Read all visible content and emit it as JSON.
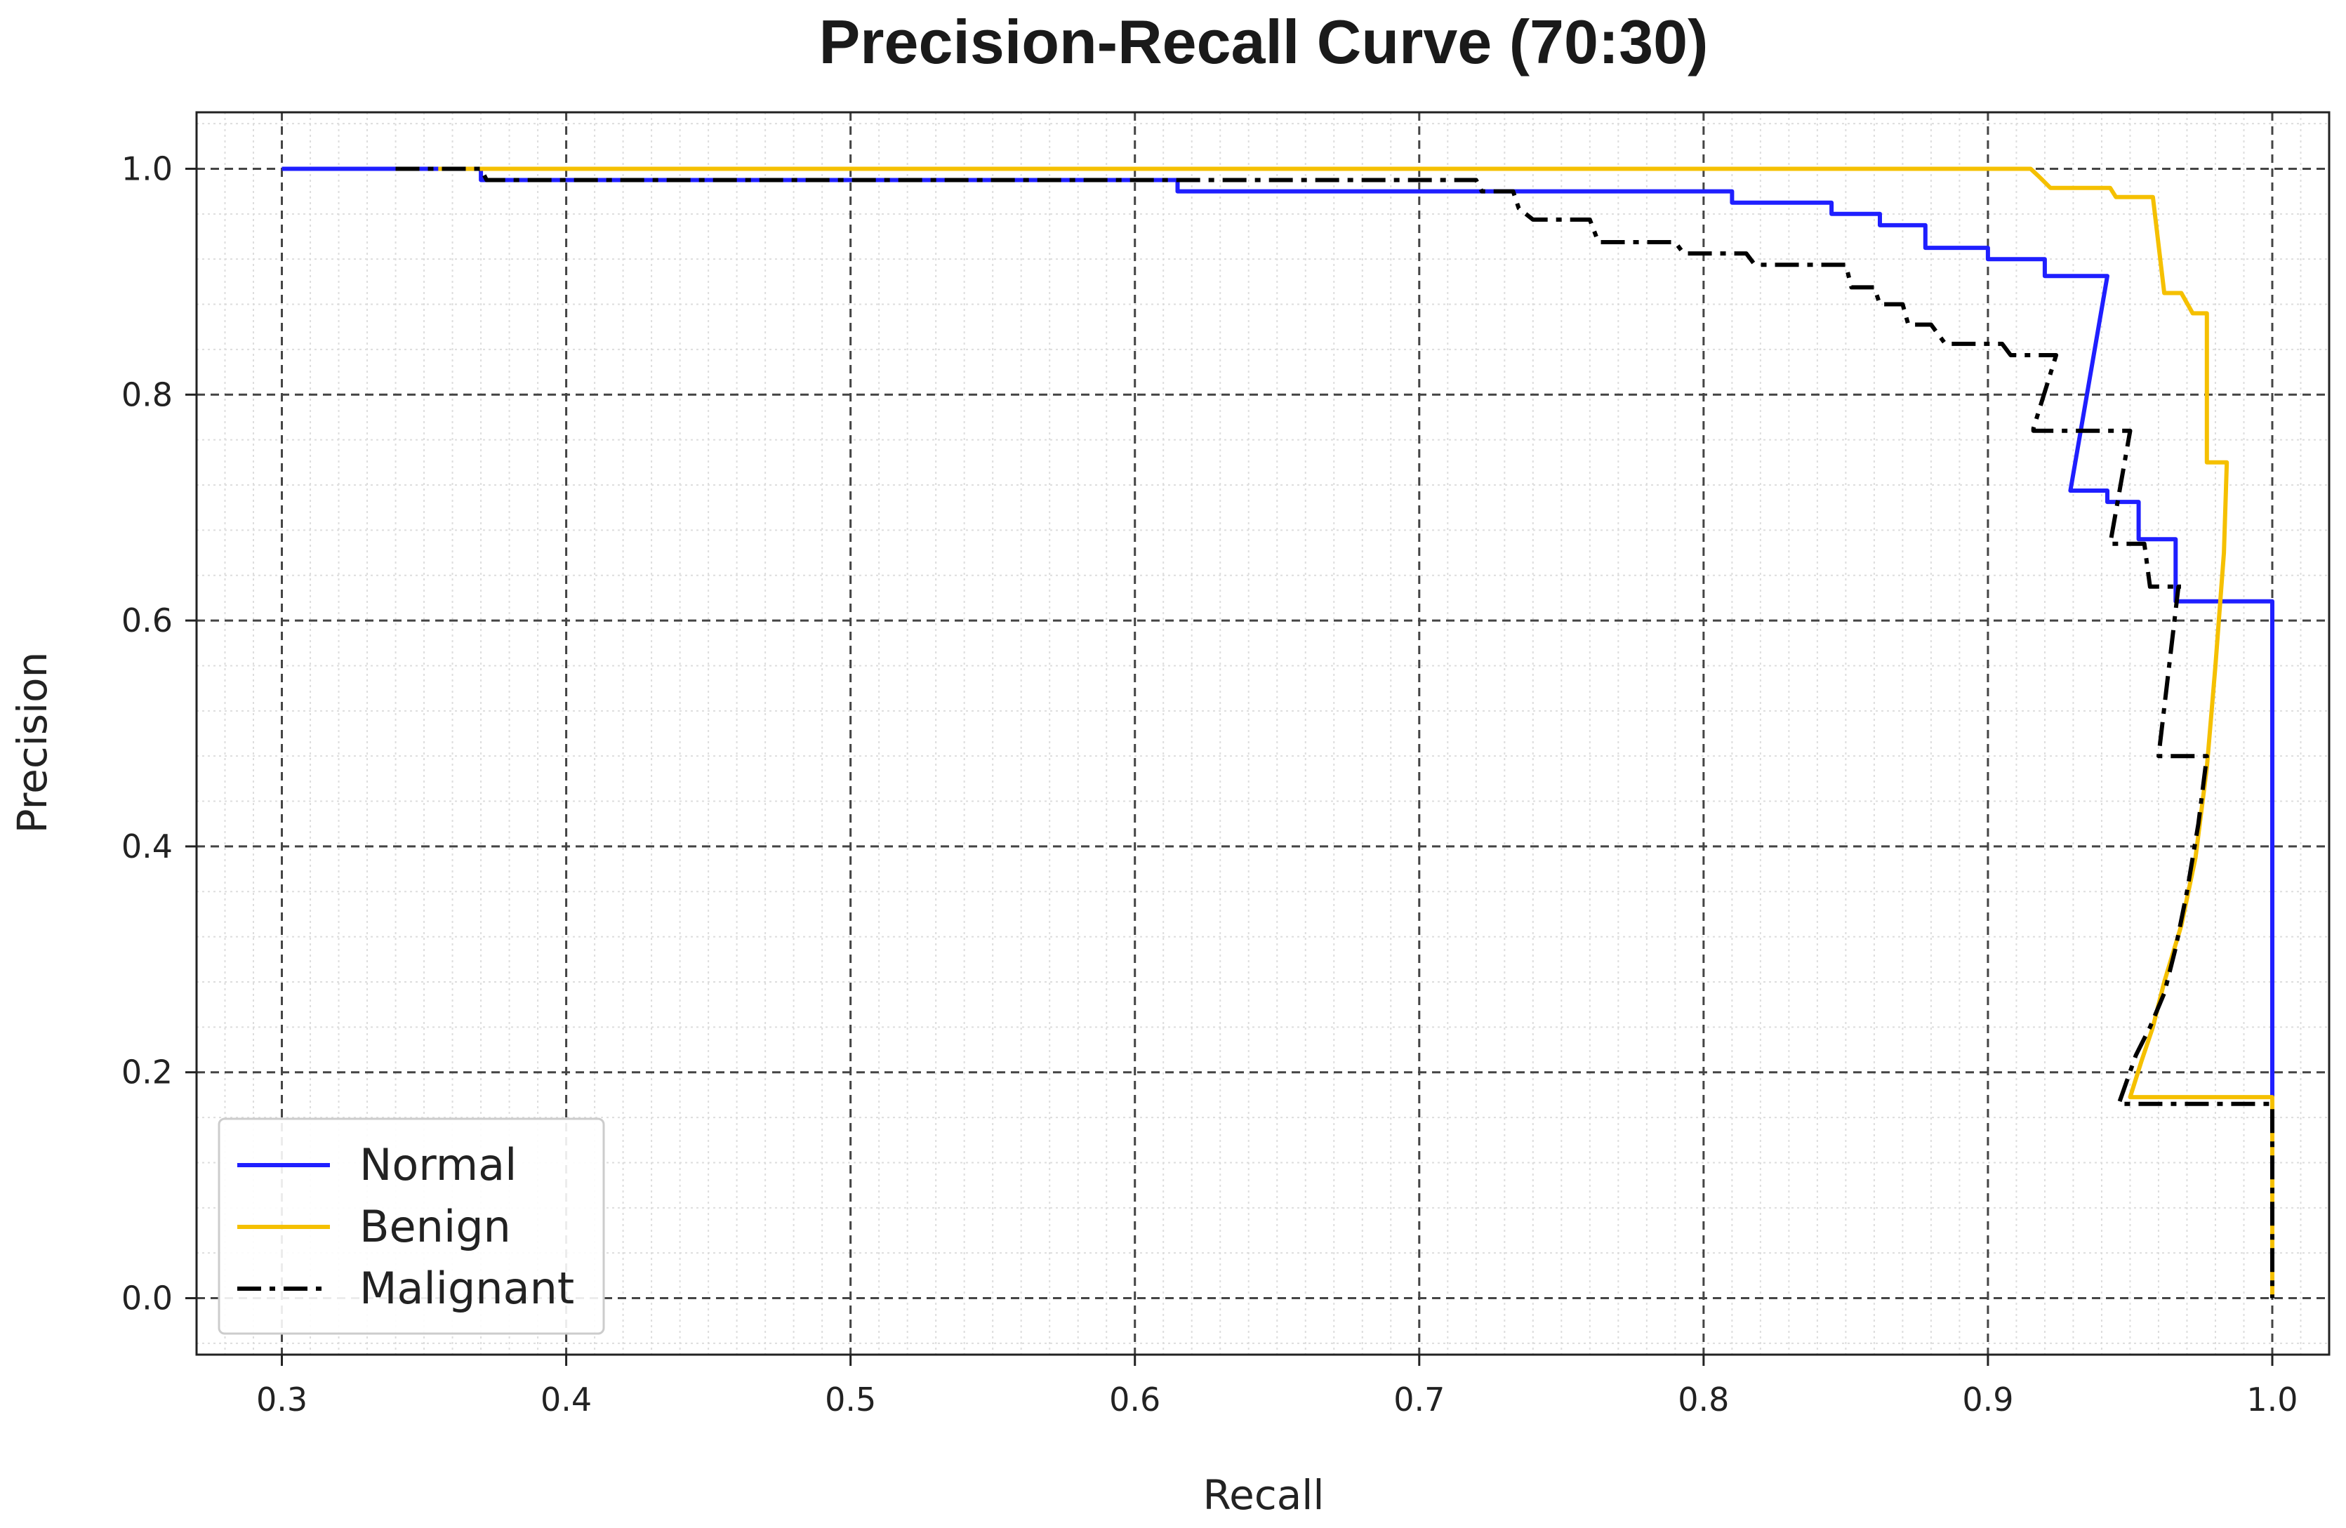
{
  "chart_data": {
    "type": "line",
    "title": "Precision-Recall Curve (70:30)",
    "xlabel": "Recall",
    "ylabel": "Precision",
    "xlim": [
      0.27,
      1.02
    ],
    "ylim": [
      -0.05,
      1.05
    ],
    "xticks": [
      0.3,
      0.4,
      0.5,
      0.6,
      0.7,
      0.8,
      0.9,
      1.0
    ],
    "xtick_labels": [
      "0.3",
      "0.4",
      "0.5",
      "0.6",
      "0.7",
      "0.8",
      "0.9",
      "1.0"
    ],
    "yticks": [
      0.0,
      0.2,
      0.4,
      0.6,
      0.8,
      1.0
    ],
    "ytick_labels": [
      "0.0",
      "0.2",
      "0.4",
      "0.6",
      "0.8",
      "1.0"
    ],
    "grid": "major dashed, minor dotted",
    "legend_position": "bottom-left",
    "series": [
      {
        "name": "Normal",
        "color": "#1f1fff",
        "style": "solid",
        "recall": [
          0.3,
          0.37,
          0.37,
          0.615,
          0.615,
          0.81,
          0.81,
          0.845,
          0.845,
          0.862,
          0.862,
          0.878,
          0.878,
          0.9,
          0.9,
          0.92,
          0.92,
          0.942,
          0.942,
          0.929,
          0.929,
          0.942,
          0.942,
          0.953,
          0.953,
          0.966,
          0.966,
          1.0,
          1.0,
          1.0
        ],
        "precision": [
          1.0,
          1.0,
          0.99,
          0.99,
          0.98,
          0.98,
          0.97,
          0.97,
          0.96,
          0.96,
          0.95,
          0.95,
          0.93,
          0.93,
          0.92,
          0.92,
          0.905,
          0.905,
          0.905,
          0.715,
          0.715,
          0.715,
          0.705,
          0.705,
          0.672,
          0.672,
          0.617,
          0.617,
          0.18,
          0.0
        ]
      },
      {
        "name": "Benign",
        "color": "#f5c000",
        "style": "solid",
        "recall": [
          0.355,
          0.915,
          0.918,
          0.922,
          0.943,
          0.945,
          0.958,
          0.962,
          0.968,
          0.972,
          0.977,
          0.977,
          0.984,
          0.983,
          0.98,
          0.977,
          0.973,
          0.968,
          0.962,
          0.958,
          0.954,
          0.95,
          1.0,
          1.0
        ],
        "precision": [
          1.0,
          1.0,
          0.993,
          0.983,
          0.983,
          0.975,
          0.975,
          0.89,
          0.89,
          0.872,
          0.872,
          0.74,
          0.74,
          0.66,
          0.56,
          0.47,
          0.39,
          0.33,
          0.28,
          0.24,
          0.21,
          0.178,
          0.178,
          0.0
        ]
      },
      {
        "name": "Malignant",
        "color": "#000000",
        "style": "dashdot",
        "recall": [
          0.34,
          0.37,
          0.372,
          0.72,
          0.722,
          0.733,
          0.735,
          0.74,
          0.76,
          0.763,
          0.79,
          0.793,
          0.815,
          0.818,
          0.85,
          0.852,
          0.86,
          0.862,
          0.87,
          0.872,
          0.88,
          0.885,
          0.905,
          0.908,
          0.922,
          0.924,
          0.916,
          0.916,
          0.948,
          0.95,
          0.943,
          0.945,
          0.955,
          0.957,
          0.962,
          0.964,
          0.968,
          0.967,
          0.96,
          0.96,
          0.977,
          0.974,
          0.97,
          0.966,
          0.962,
          0.957,
          0.952,
          0.946,
          1.0,
          1.0
        ],
        "precision": [
          1.0,
          1.0,
          0.99,
          0.99,
          0.98,
          0.98,
          0.965,
          0.955,
          0.955,
          0.935,
          0.935,
          0.925,
          0.925,
          0.915,
          0.915,
          0.895,
          0.895,
          0.88,
          0.88,
          0.862,
          0.862,
          0.845,
          0.845,
          0.835,
          0.835,
          0.835,
          0.77,
          0.768,
          0.768,
          0.768,
          0.668,
          0.668,
          0.668,
          0.63,
          0.63,
          0.63,
          0.63,
          0.63,
          0.48,
          0.48,
          0.48,
          0.42,
          0.36,
          0.31,
          0.27,
          0.24,
          0.215,
          0.172,
          0.172,
          0.0
        ]
      }
    ]
  }
}
